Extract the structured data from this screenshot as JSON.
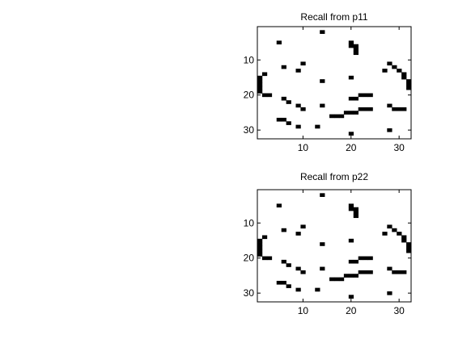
{
  "chart_data": [
    {
      "type": "heatmap",
      "title": "Recall from p11",
      "xlabel": "",
      "ylabel": "",
      "grid_size": 32,
      "xlim": [
        0.5,
        32.5
      ],
      "ylim": [
        0.5,
        32.5
      ],
      "y_reversed": true,
      "xticks": [
        10,
        20,
        30
      ],
      "yticks": [
        10,
        20,
        30
      ],
      "grid": false,
      "colors": {
        "on": "#000000",
        "off": "#ffffff"
      },
      "on_cells": [
        [
          14,
          2
        ],
        [
          5,
          5
        ],
        [
          20,
          5
        ],
        [
          20,
          6
        ],
        [
          21,
          6
        ],
        [
          21,
          7
        ],
        [
          21,
          8
        ],
        [
          10,
          11
        ],
        [
          28,
          11
        ],
        [
          6,
          12
        ],
        [
          29,
          12
        ],
        [
          9,
          13
        ],
        [
          27,
          13
        ],
        [
          30,
          13
        ],
        [
          2,
          14
        ],
        [
          31,
          14
        ],
        [
          1,
          15
        ],
        [
          31,
          15
        ],
        [
          1,
          16
        ],
        [
          14,
          16
        ],
        [
          20,
          15
        ],
        [
          32,
          16
        ],
        [
          1,
          17
        ],
        [
          32,
          17
        ],
        [
          1,
          18
        ],
        [
          32,
          18
        ],
        [
          1,
          19
        ],
        [
          2,
          20
        ],
        [
          3,
          20
        ],
        [
          22,
          20
        ],
        [
          23,
          20
        ],
        [
          24,
          20
        ],
        [
          6,
          21
        ],
        [
          20,
          21
        ],
        [
          21,
          21
        ],
        [
          7,
          22
        ],
        [
          9,
          23
        ],
        [
          14,
          23
        ],
        [
          28,
          23
        ],
        [
          10,
          24
        ],
        [
          22,
          24
        ],
        [
          23,
          24
        ],
        [
          24,
          24
        ],
        [
          29,
          24
        ],
        [
          30,
          24
        ],
        [
          31,
          24
        ],
        [
          19,
          25
        ],
        [
          20,
          25
        ],
        [
          21,
          25
        ],
        [
          16,
          26
        ],
        [
          17,
          26
        ],
        [
          18,
          26
        ],
        [
          5,
          27
        ],
        [
          6,
          27
        ],
        [
          7,
          28
        ],
        [
          9,
          29
        ],
        [
          13,
          29
        ],
        [
          28,
          30
        ],
        [
          20,
          31
        ]
      ]
    },
    {
      "type": "heatmap",
      "title": "Recall from p22",
      "xlabel": "",
      "ylabel": "",
      "grid_size": 32,
      "xlim": [
        0.5,
        32.5
      ],
      "ylim": [
        0.5,
        32.5
      ],
      "y_reversed": true,
      "xticks": [
        10,
        20,
        30
      ],
      "yticks": [
        10,
        20,
        30
      ],
      "grid": false,
      "colors": {
        "on": "#000000",
        "off": "#ffffff"
      },
      "on_cells": [
        [
          14,
          2
        ],
        [
          5,
          5
        ],
        [
          20,
          5
        ],
        [
          20,
          6
        ],
        [
          21,
          6
        ],
        [
          21,
          7
        ],
        [
          21,
          8
        ],
        [
          10,
          11
        ],
        [
          28,
          11
        ],
        [
          6,
          12
        ],
        [
          29,
          12
        ],
        [
          9,
          13
        ],
        [
          27,
          13
        ],
        [
          30,
          13
        ],
        [
          2,
          14
        ],
        [
          31,
          14
        ],
        [
          1,
          15
        ],
        [
          31,
          15
        ],
        [
          1,
          16
        ],
        [
          14,
          16
        ],
        [
          20,
          15
        ],
        [
          32,
          16
        ],
        [
          1,
          17
        ],
        [
          32,
          17
        ],
        [
          1,
          18
        ],
        [
          32,
          18
        ],
        [
          1,
          19
        ],
        [
          2,
          20
        ],
        [
          3,
          20
        ],
        [
          22,
          20
        ],
        [
          23,
          20
        ],
        [
          24,
          20
        ],
        [
          6,
          21
        ],
        [
          20,
          21
        ],
        [
          21,
          21
        ],
        [
          7,
          22
        ],
        [
          9,
          23
        ],
        [
          14,
          23
        ],
        [
          28,
          23
        ],
        [
          10,
          24
        ],
        [
          22,
          24
        ],
        [
          23,
          24
        ],
        [
          24,
          24
        ],
        [
          29,
          24
        ],
        [
          30,
          24
        ],
        [
          31,
          24
        ],
        [
          19,
          25
        ],
        [
          20,
          25
        ],
        [
          21,
          25
        ],
        [
          16,
          26
        ],
        [
          17,
          26
        ],
        [
          18,
          26
        ],
        [
          5,
          27
        ],
        [
          6,
          27
        ],
        [
          7,
          28
        ],
        [
          9,
          29
        ],
        [
          13,
          29
        ],
        [
          28,
          30
        ],
        [
          20,
          31
        ]
      ]
    }
  ]
}
